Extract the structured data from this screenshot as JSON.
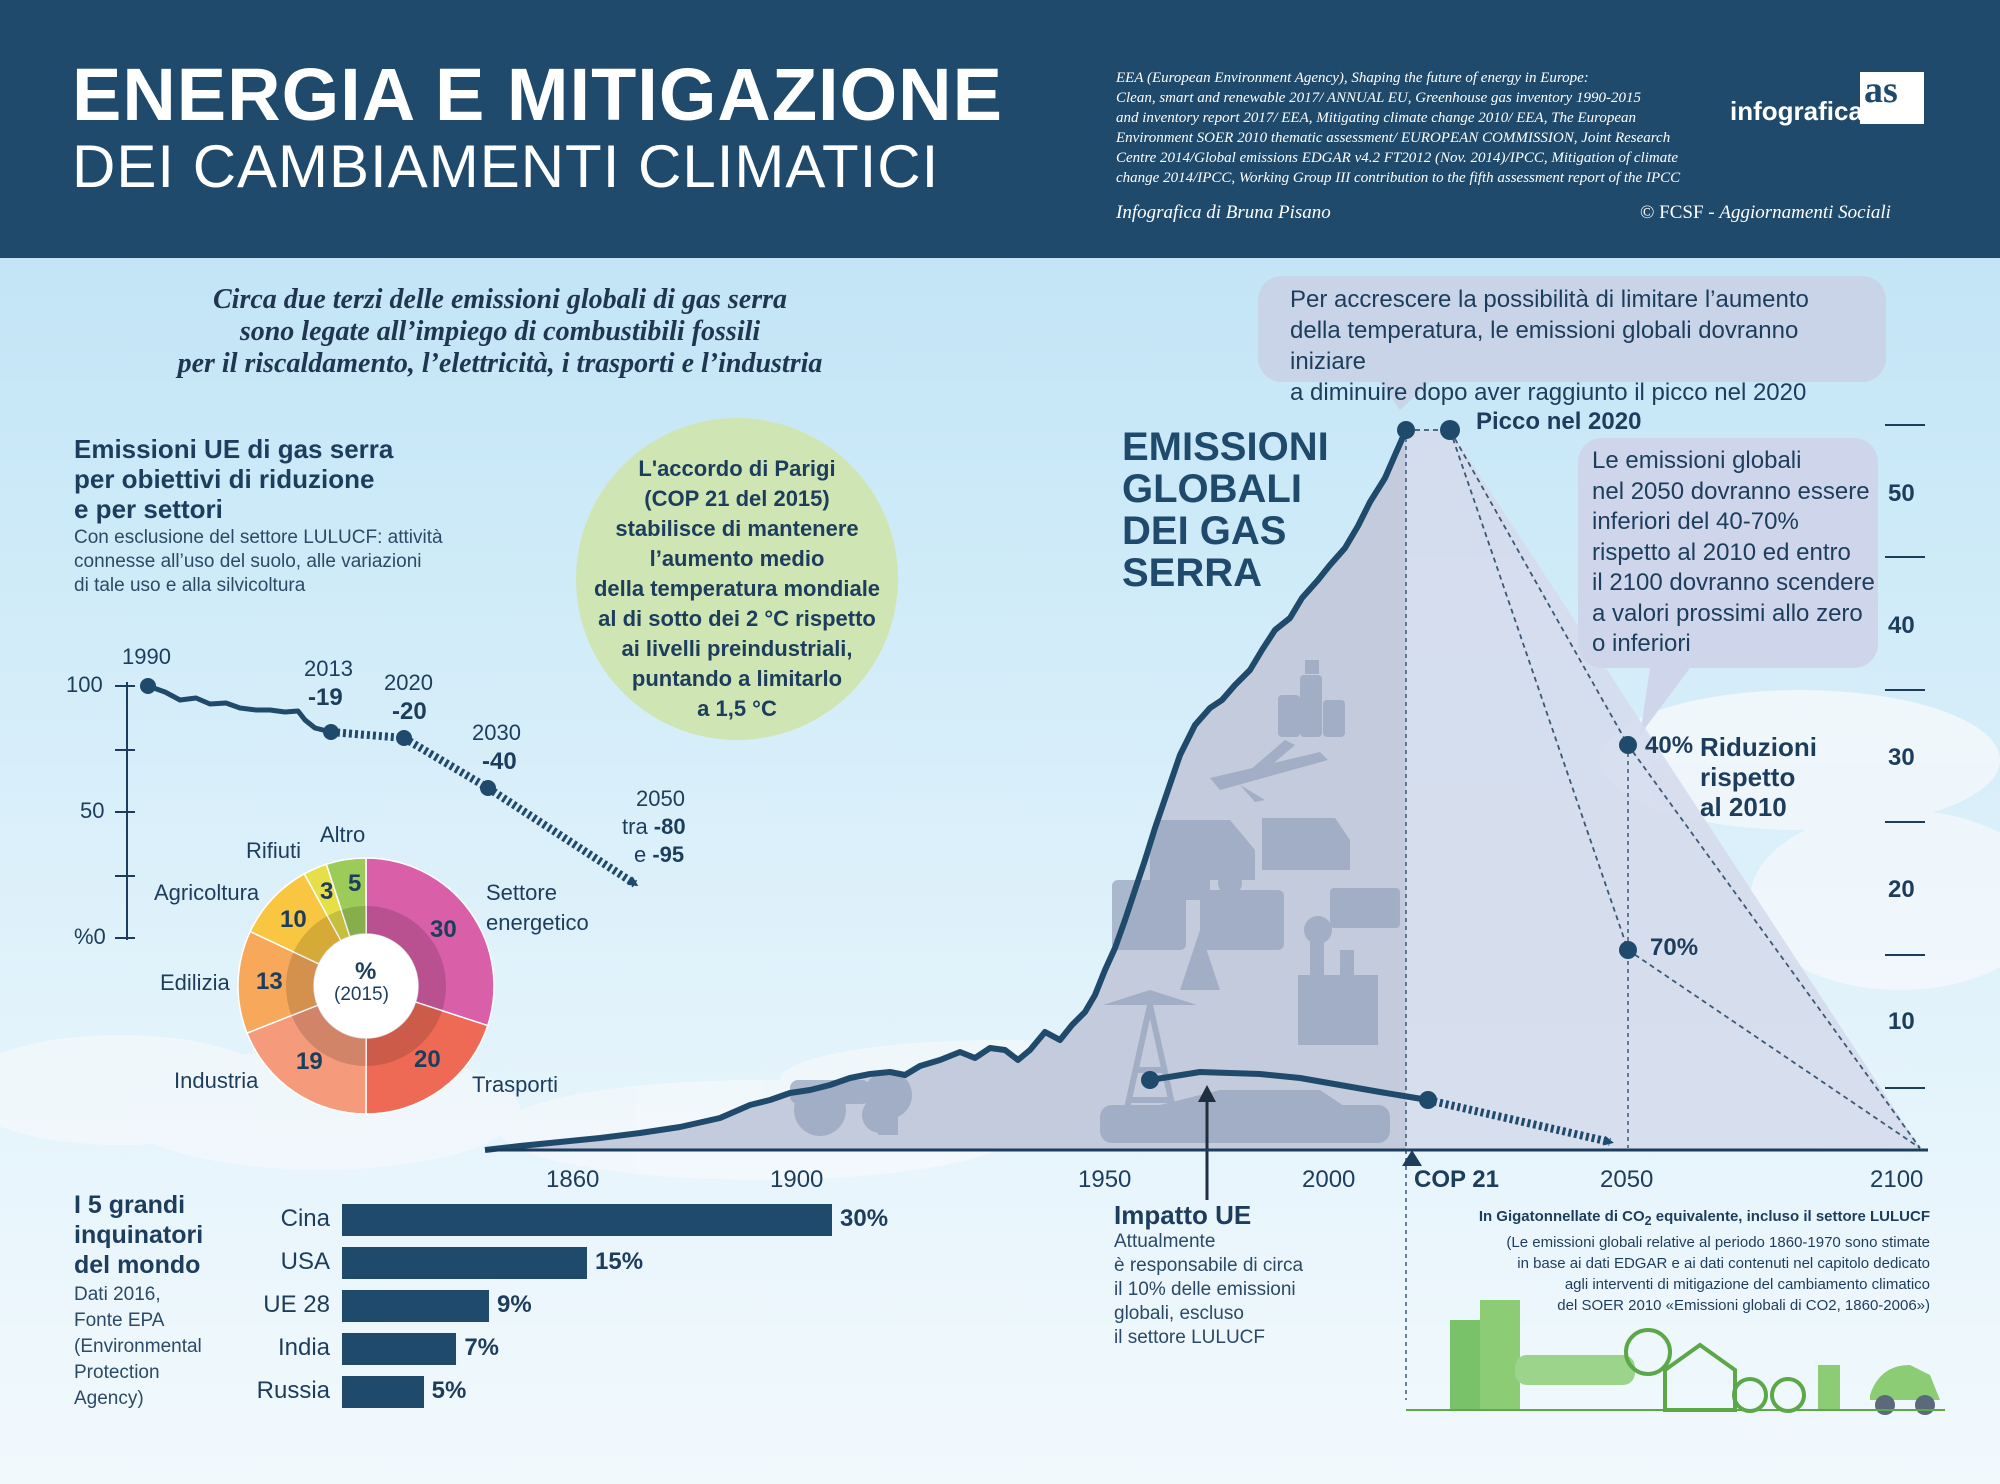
{
  "header": {
    "title_line1": "ENERGIA E MITIGAZIONE",
    "title_line2": "DEI CAMBIAMENTI CLIMATICI",
    "sources_lines": [
      "EEA (European Environment Agency), Shaping the future of energy in Europe:",
      "Clean, smart and renewable 2017/ ANNUAL EU, Greenhouse gas inventory 1990-2015",
      "and inventory report 2017/ EEA, Mitigating climate change 2010/ EEA, The European",
      "Environment SOER 2010 thematic assessment/ EUROPEAN COMMISSION, Joint Research",
      "Centre 2014/Global emissions EDGAR v4.2 FT2012 (Nov. 2014)/IPCC, Mitigation of climate",
      "change 2014/IPCC, Working Group III contribution to the fifth assessment report of the IPCC"
    ],
    "author": "Infografica di Bruna Pisano",
    "copyright_prefix": "© FCSF - ",
    "copyright_name": "Aggiornamenti Sociali",
    "logo_text": "infografica",
    "logo_mark": "as"
  },
  "intro_lines": [
    "Circa due terzi delle emissioni globali di gas serra",
    "sono legate all’impiego di combustibili fossili",
    "per il riscaldamento, l’elettricità, i trasporti e l’industria"
  ],
  "peak_bubble_lines": [
    "Per accrescere la possibilità di limitare l’aumento",
    "della temperatura, le emissioni globali dovranno iniziare",
    "a diminuire dopo aver raggiunto il picco nel 2020"
  ],
  "reduction_bubble_lines": [
    "Le emissioni globali",
    "nel 2050 dovranno essere",
    "inferiori del 40-70%",
    "rispetto al 2010 ed entro",
    "il 2100 dovranno scendere",
    "a valori prossimi allo zero",
    "o inferiori"
  ],
  "eu_section": {
    "title_lines": [
      "Emissioni UE di gas serra",
      "per obiettivi di riduzione",
      "e per settori"
    ],
    "subtitle_lines": [
      "Con esclusione del settore LULUCF: attività",
      "connesse all’uso del suolo, alle variazioni",
      "di tale uso e alla silvicoltura"
    ],
    "y_ticks": [
      "100",
      "50",
      "%0"
    ],
    "milestones": [
      {
        "year": "1990",
        "value": ""
      },
      {
        "year": "2013",
        "value": "-19"
      },
      {
        "year": "2020",
        "value": "-20"
      },
      {
        "year": "2030",
        "value": "-40"
      }
    ],
    "target_2050": {
      "year": "2050",
      "prefix1": "tra ",
      "value1": "-80",
      "prefix2": "e ",
      "value2": "-95"
    }
  },
  "donut": {
    "center_label": "%",
    "center_year": "(2015)",
    "sectors": [
      {
        "name": "Settore energetico",
        "value": 30,
        "color": "#d85fa8"
      },
      {
        "name": "Trasporti",
        "value": 20,
        "color": "#ef6a55"
      },
      {
        "name": "Industria",
        "value": 19,
        "color": "#f59a7a"
      },
      {
        "name": "Edilizia",
        "value": 13,
        "color": "#f7a85a"
      },
      {
        "name": "Agricoltura",
        "value": 10,
        "color": "#f8c640"
      },
      {
        "name": "Rifiuti",
        "value": 3,
        "color": "#e7df48"
      },
      {
        "name": "Altro",
        "value": 5,
        "color": "#9ccb5a"
      }
    ]
  },
  "paris": {
    "lines": [
      "L'accordo di Parigi",
      "(COP 21 del 2015)",
      "stabilisce di mantenere",
      "l’aumento medio",
      "della temperatura mondiale",
      "al di sotto dei 2 °C rispetto",
      "ai livelli preindustriali,",
      "puntando a limitarlo",
      "a 1,5 °C"
    ]
  },
  "global_chart": {
    "title_lines": [
      "EMISSIONI",
      "GLOBALI",
      "DEI GAS",
      "SERRA"
    ],
    "x_ticks": [
      "1860",
      "1900",
      "1950",
      "2000",
      "2050",
      "2100"
    ],
    "cop_label": "COP 21",
    "y_ticks": [
      "50",
      "40",
      "30",
      "20",
      "10"
    ],
    "peak_label": "Picco nel 2020",
    "reduction_40": "40%",
    "reduction_70": "70%",
    "reduction_label_lines": [
      "Riduzioni",
      "rispetto",
      "al 2010"
    ],
    "note_line1_prefix": "In Gigatonnellate di CO",
    "note_line1_sub": "2",
    "note_line1_suffix": " equivalente, incluso il settore LULUCF",
    "note_lines": [
      "(Le emissioni globali relative al periodo 1860-1970 sono stimate",
      "in base ai dati EDGAR e ai dati contenuti nel capitolo dedicato",
      "agli interventi di mitigazione del cambiamento climatico",
      "del SOER 2010 «Emissioni globali di CO2, 1860-2006»)"
    ]
  },
  "eu_impact": {
    "title": "Impatto UE",
    "lines": [
      "Attualmente",
      "è responsabile di circa",
      "il 10% delle emissioni",
      "globali, escluso",
      "il settore LULUCF"
    ]
  },
  "polluters": {
    "title_lines": [
      "I 5 grandi",
      "inquinatori",
      "del mondo"
    ],
    "subtitle_lines": [
      "Dati 2016,",
      "Fonte EPA",
      "(Environmental",
      "Protection",
      "Agency)"
    ],
    "items": [
      {
        "country": "Cina",
        "label": "30%",
        "value": 30
      },
      {
        "country": "USA",
        "label": "15%",
        "value": 15
      },
      {
        "country": "UE 28",
        "label": "9%",
        "value": 9
      },
      {
        "country": "India",
        "label": "7%",
        "value": 7
      },
      {
        "country": "Russia",
        "label": "5%",
        "value": 5
      }
    ]
  },
  "colors": {
    "navy": "#1f4a6c",
    "mountain": "#c3cbdc",
    "projection": "#d5dcec"
  }
}
